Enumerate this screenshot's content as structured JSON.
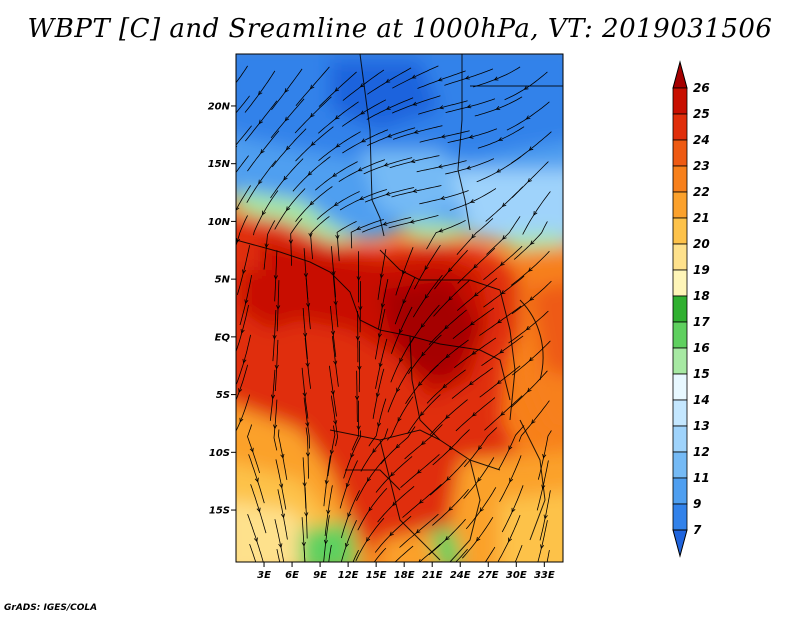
{
  "title": "WBPT [C] and Sreamline at 1000hPa, VT: 2019031506",
  "credit": "GrADS: IGES/COLA",
  "chart_data": {
    "type": "heatmap",
    "title": "WBPT [C] and Sreamline at 1000hPa, VT: 2019031506",
    "variable": "Wet-bulb potential temperature",
    "units": "C",
    "level": "1000hPa",
    "valid_time": "2019031506",
    "x_axis": {
      "range": [
        0,
        35
      ],
      "ticks": [
        3,
        6,
        9,
        12,
        15,
        18,
        21,
        24,
        27,
        30,
        33
      ],
      "tick_labels": [
        "3E",
        "6E",
        "9E",
        "12E",
        "15E",
        "18E",
        "21E",
        "24E",
        "27E",
        "30E",
        "33E"
      ]
    },
    "y_axis": {
      "range": [
        -19.5,
        24.5
      ],
      "ticks": [
        -15,
        -10,
        -5,
        0,
        5,
        10,
        15,
        20
      ],
      "tick_labels": [
        "15S",
        "10S",
        "5S",
        "EQ",
        "5N",
        "10N",
        "15N",
        "20N"
      ]
    },
    "colorbar": {
      "placement": "right",
      "levels": [
        "26",
        "25",
        "24",
        "23",
        "22",
        "21",
        "20",
        "19",
        "18",
        "17",
        "16",
        "15",
        "14",
        "13",
        "12",
        "11",
        "9",
        "7"
      ],
      "colors": [
        "#a50000",
        "#c80f00",
        "#e02e0a",
        "#ee5a12",
        "#f7801b",
        "#fba12c",
        "#fdc24a",
        "#fee18c",
        "#fef5b8",
        "#30b030",
        "#5fd05f",
        "#a7e9a3",
        "#e8f8ff",
        "#c4e7ff",
        "#9fd3fb",
        "#75baf5",
        "#4f9ff0",
        "#3282ea",
        "#1f64dd"
      ]
    },
    "overlay": "streamlines"
  }
}
